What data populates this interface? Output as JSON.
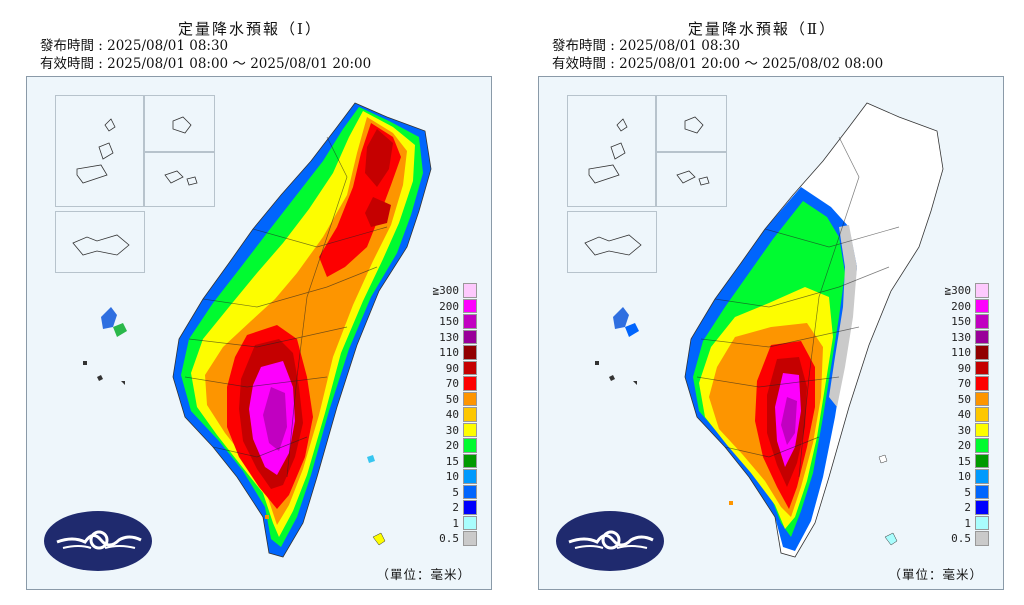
{
  "panels": [
    {
      "title": "定量降水預報（Ⅰ）",
      "issued": "發布時間 : 2025/08/01 08:30",
      "valid": "有效時間 : 2025/08/01 08:00 ～ 2025/08/01 20:00",
      "unit": "（單位：毫米）"
    },
    {
      "title": "定量降水預報（Ⅱ）",
      "issued": "發布時間 : 2025/08/01 08:30",
      "valid": "有效時間 : 2025/08/01 20:00 ～ 2025/08/02 08:00",
      "unit": "（單位：毫米）"
    }
  ],
  "legend": {
    "labels": [
      "≧300",
      "200",
      "150",
      "130",
      "110",
      "90",
      "70",
      "50",
      "40",
      "30",
      "20",
      "15",
      "10",
      "5",
      "2",
      "1",
      "0.5"
    ],
    "colors": [
      "#fdc9fd",
      "#fd00fd",
      "#c100c1",
      "#990099",
      "#910000",
      "#c50000",
      "#fd0000",
      "#fd9500",
      "#fdc700",
      "#fdfd00",
      "#00fb30",
      "#009a00",
      "#009afd",
      "#0065fd",
      "#0000fd",
      "#a9fdfd",
      "#cacaca"
    ]
  }
}
